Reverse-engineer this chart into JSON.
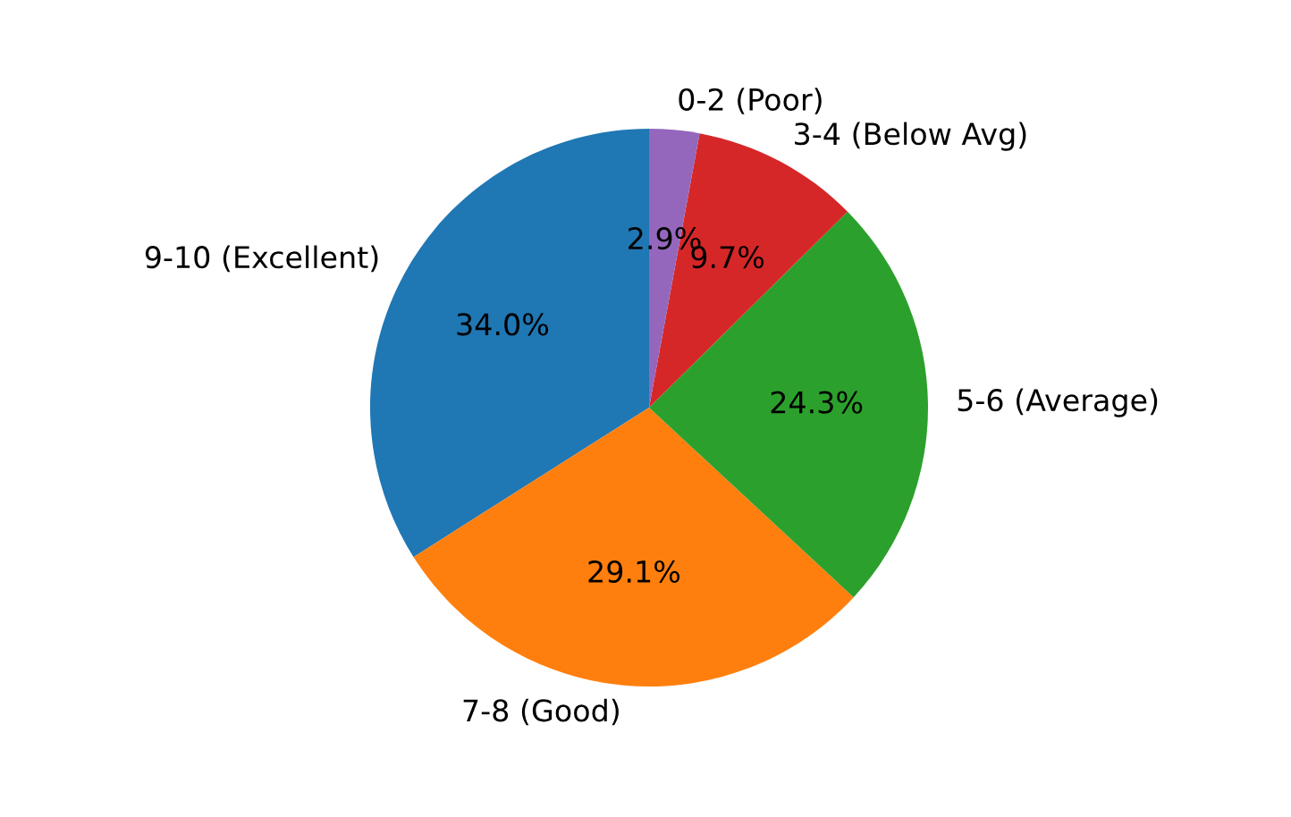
{
  "chart_data": {
    "type": "pie",
    "categories": [
      "9-10 (Excellent)",
      "7-8 (Good)",
      "5-6 (Average)",
      "3-4 (Below Avg)",
      "0-2 (Poor)"
    ],
    "values": [
      34.0,
      29.1,
      24.3,
      9.7,
      2.9
    ],
    "colors": [
      "#1f77b4",
      "#ff7f0e",
      "#2ca02c",
      "#d62728",
      "#9467bd"
    ],
    "value_labels": [
      "34.0%",
      "29.1%",
      "24.3%",
      "9.7%",
      "2.9%"
    ]
  }
}
